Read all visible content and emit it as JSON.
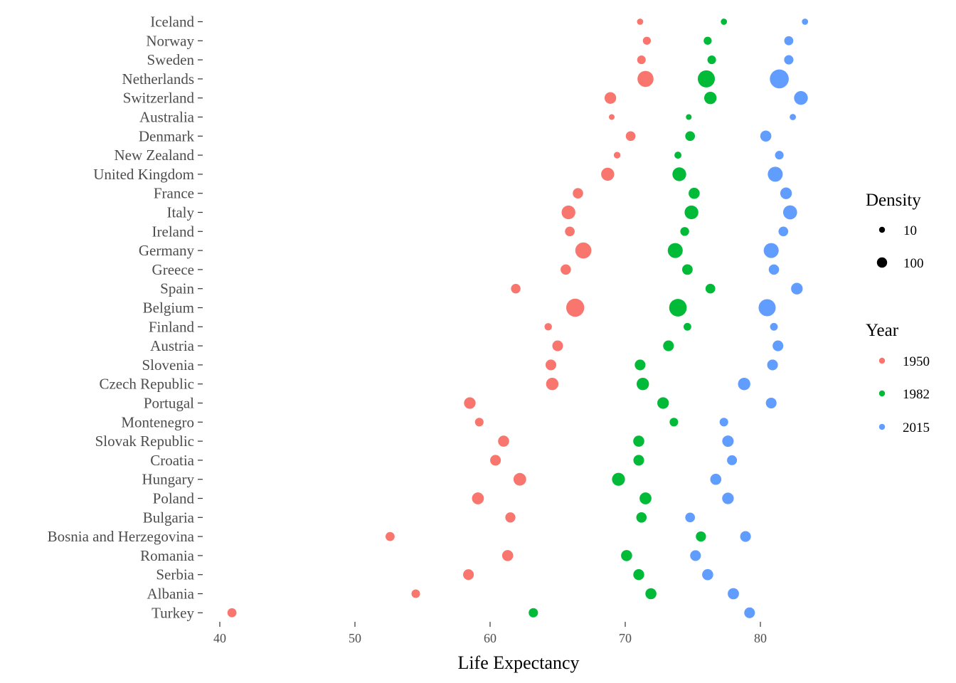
{
  "chart_data": {
    "type": "scatter",
    "title": "",
    "xlabel": "Life Expectancy",
    "ylabel": "",
    "xlim": [
      39,
      82.7
    ],
    "x_ticks": [
      40,
      50,
      60,
      70,
      80
    ],
    "grid": false,
    "legend_placement": "right",
    "categories": [
      "Iceland",
      "Norway",
      "Sweden",
      "Netherlands",
      "Switzerland",
      "Australia",
      "Denmark",
      "New Zealand",
      "United Kingdom",
      "France",
      "Italy",
      "Ireland",
      "Germany",
      "Greece",
      "Spain",
      "Belgium",
      "Finland",
      "Austria",
      "Slovenia",
      "Czech Republic",
      "Portugal",
      "Montenegro",
      "Slovak Republic",
      "Croatia",
      "Hungary",
      "Poland",
      "Bulgaria",
      "Bosnia and Herzegovina",
      "Romania",
      "Serbia",
      "Albania",
      "Turkey"
    ],
    "series": [
      {
        "name": "1950",
        "color": "#F8766D",
        "x": [
          71.1,
          71.6,
          71.2,
          71.5,
          68.9,
          69.0,
          70.4,
          69.4,
          68.7,
          66.5,
          65.8,
          65.9,
          66.9,
          65.6,
          61.9,
          66.3,
          64.3,
          65.0,
          64.5,
          64.6,
          58.5,
          59.2,
          61.0,
          60.4,
          62.2,
          59.1,
          61.5,
          52.6,
          61.3,
          58.4,
          54.5,
          40.9
        ],
        "density": [
          3,
          8,
          10,
          60,
          25,
          2,
          15,
          4,
          35,
          18,
          40,
          15,
          60,
          18,
          14,
          80,
          6,
          20,
          20,
          30,
          25,
          10,
          22,
          20,
          32,
          27,
          17,
          12,
          22,
          20,
          10,
          12
        ]
      },
      {
        "name": "1982",
        "color": "#00BA38",
        "x": [
          77.3,
          76.1,
          76.4,
          76.0,
          76.3,
          74.7,
          74.8,
          73.9,
          74.0,
          75.1,
          74.9,
          74.4,
          73.7,
          74.6,
          76.3,
          73.9,
          74.6,
          73.2,
          71.1,
          71.3,
          72.8,
          73.6,
          71.0,
          71.0,
          69.5,
          71.5,
          71.2,
          75.6,
          70.1,
          71.0,
          71.9,
          63.2
        ],
        "density": [
          3,
          8,
          10,
          70,
          30,
          2,
          15,
          5,
          40,
          22,
          40,
          11,
          50,
          19,
          15,
          75,
          7,
          20,
          20,
          30,
          25,
          10,
          22,
          20,
          34,
          27,
          18,
          17,
          22,
          21,
          22,
          13
        ]
      },
      {
        "name": "2015",
        "color": "#619CFF",
        "x": [
          83.3,
          82.1,
          82.1,
          81.4,
          83.0,
          82.4,
          80.4,
          81.4,
          81.1,
          81.9,
          82.2,
          81.7,
          80.8,
          81.0,
          82.7,
          80.5,
          81.0,
          81.3,
          80.9,
          78.8,
          80.8,
          77.3,
          77.6,
          77.9,
          76.7,
          77.6,
          74.8,
          78.9,
          75.2,
          76.1,
          78.0,
          79.2
        ],
        "density": [
          3,
          12,
          13,
          90,
          40,
          3,
          22,
          10,
          50,
          25,
          42,
          15,
          50,
          18,
          25,
          70,
          7,
          20,
          20,
          30,
          20,
          10,
          24,
          16,
          22,
          25,
          15,
          20,
          20,
          22,
          23,
          20
        ]
      }
    ],
    "legend": {
      "size_title": "Density",
      "size_entries": [
        {
          "label": "10",
          "value": 10
        },
        {
          "label": "100",
          "value": 100
        }
      ],
      "color_title": "Year",
      "color_entries": [
        "1950",
        "1982",
        "2015"
      ]
    }
  }
}
